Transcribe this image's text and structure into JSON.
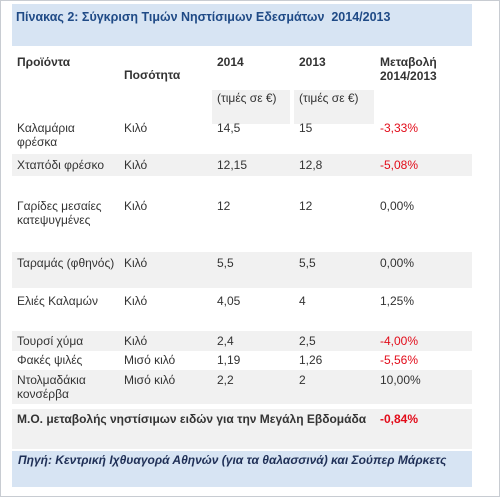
{
  "table": {
    "title": "Πίνακας 2: Σύγκριση Τιμών Νηστίσιμων Εδεσμάτων  2014/2013",
    "headers": {
      "product": "Προϊόντα",
      "quantity": "Ποσότητα",
      "y2014": "2014",
      "y2013": "2013",
      "change": "Μεταβολή 2014/2013",
      "price_note_2014": "(τιμές σε €)",
      "price_note_2013": "(τιμές σε €)"
    },
    "rows": [
      {
        "product": "Καλαμάρια φρέσκα",
        "quantity": "Κιλό",
        "p2014": "14,5",
        "p2013": "15",
        "change": "-3,33%"
      },
      {
        "product": "Χταπόδι φρέσκο",
        "quantity": "Κιλό",
        "p2014": "12,15",
        "p2013": "12,8",
        "change": "-5,08%"
      },
      {
        "product": "Γαρίδες μεσαίες κατεψυγμένες",
        "quantity": "Κιλό",
        "p2014": "12",
        "p2013": "12",
        "change": "0,00%"
      },
      {
        "product": "Ταραμάς (φθηνός)",
        "quantity": "Κιλό",
        "p2014": "5,5",
        "p2013": "5,5",
        "change": "0,00%"
      },
      {
        "product": "Ελιές Καλαμών",
        "quantity": "Κιλό",
        "p2014": "4,05",
        "p2013": "4",
        "change": "1,25%"
      },
      {
        "product": "Τουρσί χύμα",
        "quantity": "Κιλό",
        "p2014": "2,4",
        "p2013": "2,5",
        "change": "-4,00%"
      },
      {
        "product": "Φακές ψιλές",
        "quantity": "Μισό κιλό",
        "p2014": "1,19",
        "p2013": "1,26",
        "change": "-5,56%"
      },
      {
        "product": "Ντολμαδάκια κονσέρβα",
        "quantity": "Μισό κιλό",
        "p2014": "2,2",
        "p2013": "2",
        "change": "10,00%"
      }
    ],
    "summary": {
      "label": "Μ.Ο. μεταβολής νηστίσιμων ειδών για την Μεγάλη Εβδομάδα",
      "value": "-0,84%"
    },
    "source": "Πηγή:  Κεντρική Ιχθυαγορά Αθηνών (για τα θαλασσινά) και Σούπερ Μάρκετς"
  }
}
